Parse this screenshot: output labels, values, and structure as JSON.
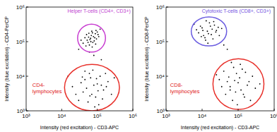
{
  "chart_data": [
    {
      "type": "scatter",
      "log": true,
      "grid": false,
      "x_label": "Intensity (red excitation) - CD3-APC",
      "y_label": "Intensity (blue excitation) - CD4-PerCP",
      "xlim": [
        1000,
        1000000
      ],
      "ylim": [
        1000,
        1000000
      ],
      "xticks": [
        {
          "value": 1000,
          "label": "10³"
        },
        {
          "value": 10000,
          "label": "10⁴"
        },
        {
          "value": 100000,
          "label": "10⁵"
        },
        {
          "value": 1000000,
          "label": "10⁶"
        }
      ],
      "yticks": [
        {
          "value": 1000,
          "label": "10³"
        },
        {
          "value": 10000,
          "label": "10⁴"
        },
        {
          "value": 100000,
          "label": "10⁵"
        },
        {
          "value": 1000000,
          "label": "10⁶"
        }
      ],
      "series": [
        {
          "color": "#000000",
          "marker": "dot",
          "x": [
            52000,
            68000,
            75000,
            45000,
            88000,
            60000,
            95000,
            70000,
            40000,
            110000,
            58000,
            82000,
            65000,
            50000,
            100000,
            72000,
            35000,
            90000,
            78000,
            55000,
            120000,
            62000,
            85000,
            48000,
            105000,
            66000,
            30000,
            73000,
            92000,
            57000,
            80000,
            130000,
            60000,
            20000,
            45000,
            70000,
            100000,
            150000,
            30000,
            60000,
            90000,
            200000,
            40000,
            120000,
            80000,
            55000,
            250000,
            35000,
            110000,
            65000,
            170000,
            25000,
            75000,
            140000,
            50000,
            95000,
            180000,
            85000,
            45000,
            130000,
            300000,
            15000,
            62000,
            105000,
            38000
          ],
          "values": [
            110000,
            150000,
            95000,
            130000,
            170000,
            80000,
            120000,
            200000,
            90000,
            140000,
            175000,
            105000,
            125000,
            160000,
            190000,
            70000,
            110000,
            85000,
            140000,
            95000,
            230000,
            115000,
            130000,
            75000,
            160000,
            100000,
            60000,
            180000,
            210000,
            135000,
            40000,
            30000,
            50000,
            5000,
            8000,
            3000,
            6000,
            4000,
            2000,
            12000,
            2500,
            7000,
            3500,
            10000,
            5500,
            1800,
            3000,
            6500,
            1500,
            9000,
            12000,
            3000,
            15000,
            2200,
            4500,
            8500,
            5000,
            1300,
            14000,
            5500,
            9000,
            10000,
            2700,
            3800,
            9500
          ]
        }
      ],
      "gates": [
        {
          "color": "#c83dd1",
          "x": [
            28000,
            170000
          ],
          "y": [
            50000,
            320000
          ]
        },
        {
          "color": "#e8302a",
          "x": [
            12000,
            420000
          ],
          "y": [
            1000,
            22000
          ]
        }
      ],
      "annotations": [
        {
          "text": "Helper T-cells (CD4+, CD3+)",
          "color": "#c040d0",
          "x": 112000,
          "y": 700000
        },
        {
          "lines": [
            "CD4-",
            "lymphocytes"
          ],
          "color": "#e02020",
          "x": 1500,
          "y": 5000
        }
      ]
    },
    {
      "type": "scatter",
      "log": true,
      "grid": false,
      "x_label": "Intensity (red excitation) - CD3-APC",
      "y_label": "Intensity (blue excitation) - CD8-PerCP",
      "xlim": [
        1000,
        1000000
      ],
      "ylim": [
        1000,
        1000000
      ],
      "xticks": [
        {
          "value": 1000,
          "label": "10³"
        },
        {
          "value": 10000,
          "label": "10⁴"
        },
        {
          "value": 100000,
          "label": "10⁵"
        },
        {
          "value": 1000000,
          "label": "10⁶"
        }
      ],
      "yticks": [
        {
          "value": 1000,
          "label": "10³"
        },
        {
          "value": 10000,
          "label": "10⁴"
        },
        {
          "value": 100000,
          "label": "10⁵"
        },
        {
          "value": 1000000,
          "label": "10⁶"
        }
      ],
      "series": [
        {
          "color": "#000000",
          "marker": "dot",
          "x": [
            14000,
            10000,
            18000,
            8000,
            22000,
            12000,
            16000,
            25000,
            9000,
            20000,
            13000,
            11000,
            28000,
            7000,
            15000,
            19000,
            6000,
            30000,
            17000,
            12500,
            24000,
            10500,
            21000,
            35000,
            14500,
            9500,
            40000,
            50000,
            30000,
            60000,
            90000,
            120000,
            200000,
            45000,
            75000,
            150000,
            250000,
            40000,
            100000,
            70000,
            300000,
            55000,
            130000,
            85000,
            180000,
            35000,
            110000,
            65000,
            220000,
            50000,
            160000,
            95000,
            80000,
            400000,
            25000,
            140000,
            115000,
            60000
          ],
          "values": [
            200000,
            250000,
            160000,
            180000,
            300000,
            130000,
            350000,
            210000,
            280000,
            120000,
            400000,
            150000,
            260000,
            220000,
            170000,
            230000,
            320000,
            150000,
            280000,
            110000,
            190000,
            210000,
            380000,
            240000,
            90000,
            140000,
            80000,
            60000,
            8000,
            5000,
            12000,
            4000,
            7000,
            3000,
            18000,
            2500,
            10000,
            14000,
            6500,
            2000,
            4500,
            9500,
            16000,
            3500,
            5500,
            5000,
            9000,
            25000,
            2000,
            7000,
            13000,
            1500,
            7500,
            6000,
            11000,
            3000,
            22000,
            4000
          ]
        }
      ],
      "gates": [
        {
          "color": "#6a5ce0",
          "x": [
            5000,
            48000
          ],
          "y": [
            75000,
            520000
          ]
        },
        {
          "color": "#e8302a",
          "x": [
            20000,
            520000
          ],
          "y": [
            1100,
            32000
          ]
        }
      ],
      "annotations": [
        {
          "text": "Cytotoxic T-cells (CD8+, CD3+)",
          "color": "#7050e0",
          "x": 89000,
          "y": 700000
        },
        {
          "lines": [
            "CD8-",
            "lymphocytes"
          ],
          "color": "#e02020",
          "x": 1300,
          "y": 5000
        }
      ]
    }
  ]
}
